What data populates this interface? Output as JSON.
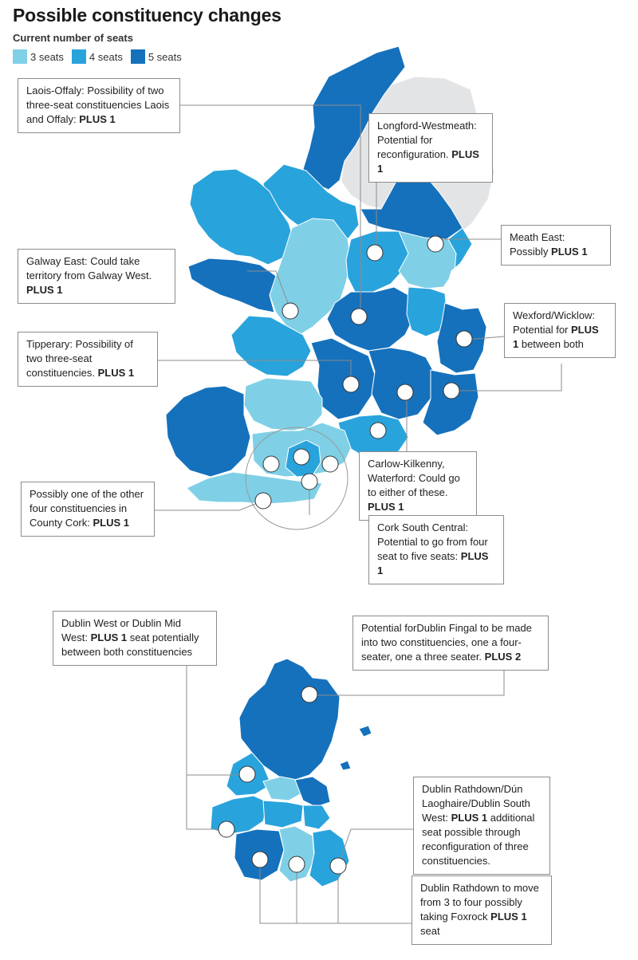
{
  "title": "Possible constituency changes",
  "subtitle": "Current number of seats",
  "colors": {
    "three": "#7fd0e6",
    "four": "#29a3dc",
    "five": "#1571bc",
    "northern_ireland": "#e3e4e6",
    "dublin_white": "#ffffff",
    "marker": "#ffffff"
  },
  "legend": [
    {
      "label": "3 seats",
      "color": "#7fd0e6"
    },
    {
      "label": "4 seats",
      "color": "#29a3dc"
    },
    {
      "label": "5 seats",
      "color": "#1571bc"
    }
  ],
  "callouts": {
    "laois_offaly": {
      "text": "Laois-Offaly: Possibility of two three-seat constituencies Laois and Offaly: ",
      "bold": "PLUS 1"
    },
    "longford_westmeath": {
      "text": "Longford-Westmeath: Potential for reconfiguration. ",
      "bold": "PLUS 1"
    },
    "meath_east": {
      "text": "Meath East: Possibly ",
      "bold": "PLUS 1"
    },
    "galway_east": {
      "text": "Galway East: Could take territory from Galway West. ",
      "bold": "PLUS 1"
    },
    "wexford_wicklow": {
      "text": "Wexford/Wicklow: Potential for ",
      "bold": "PLUS 1",
      "after": " between both"
    },
    "tipperary": {
      "text": "Tipperary: Possibility of two three-seat constituencies. ",
      "bold": "PLUS 1"
    },
    "carlow_kilkenny": {
      "text": "Carlow-Kilkenny, Waterford: Could go to either of these. ",
      "bold": "PLUS 1"
    },
    "cork_other": {
      "text": "Possibly one of the other four constituencies in County Cork: ",
      "bold": "PLUS 1"
    },
    "cork_south_central": {
      "text": "Cork South Central: Potential to go from four seat to five seats: ",
      "bold": "PLUS 1"
    },
    "dublin_west": {
      "text": "Dublin West or Dublin Mid West: ",
      "bold": "PLUS 1",
      "after": " seat potentially between both constituencies"
    },
    "dublin_fingal": {
      "text": "Potential forDublin Fingal to be made into two constituencies, one a four-seater, one a three seater. ",
      "bold": "PLUS 2"
    },
    "dublin_rathdown_dunlaoghaire": {
      "text": "Dublin Rathdown/Dún Laoghaire/Dublin South West: ",
      "bold": "PLUS 1",
      "after": " additional seat possible through reconfiguration of three constituencies."
    },
    "dublin_rathdown_foxrock": {
      "text": "Dublin Rathdown to move from 3 to four possibly taking Foxrock ",
      "bold": "PLUS 1",
      "after": " seat"
    }
  }
}
